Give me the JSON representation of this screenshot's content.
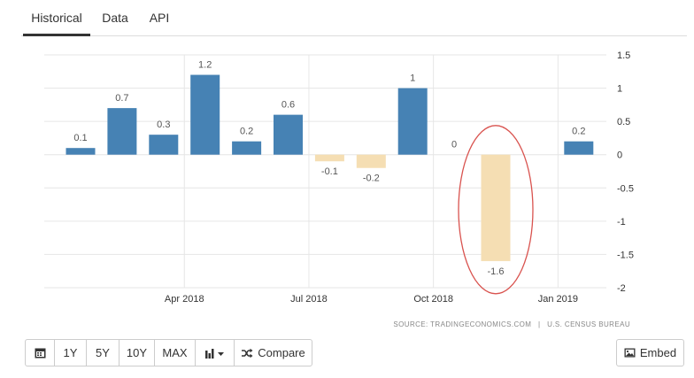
{
  "tabs": [
    {
      "label": "Historical",
      "active": true
    },
    {
      "label": "Data",
      "active": false
    },
    {
      "label": "API",
      "active": false
    }
  ],
  "chart_data": {
    "type": "bar",
    "title": "",
    "xlabel": "",
    "ylabel": "",
    "ylim": [
      -2,
      1.5
    ],
    "yticks": [
      "1.5",
      "1",
      "0.5",
      "0",
      "-0.5",
      "-1",
      "-1.5",
      "-2"
    ],
    "y_axis_position": "right",
    "grid": true,
    "x_tick_labels": [
      {
        "label": "Apr 2018",
        "at": 2.5
      },
      {
        "label": "Jul 2018",
        "at": 5.5
      },
      {
        "label": "Oct 2018",
        "at": 8.5
      },
      {
        "label": "Jan 2019",
        "at": 11.5
      }
    ],
    "bars": [
      {
        "value": 0.1,
        "label": "0.1"
      },
      {
        "value": 0.7,
        "label": "0.7"
      },
      {
        "value": 0.3,
        "label": "0.3"
      },
      {
        "value": 1.2,
        "label": "1.2"
      },
      {
        "value": 0.2,
        "label": "0.2"
      },
      {
        "value": 0.6,
        "label": "0.6"
      },
      {
        "value": -0.1,
        "label": "-0.1"
      },
      {
        "value": -0.2,
        "label": "-0.2"
      },
      {
        "value": 1,
        "label": "1"
      },
      {
        "value": 0,
        "label": "0"
      },
      {
        "value": -1.6,
        "label": "-1.6"
      },
      {
        "value": null,
        "label": ""
      },
      {
        "value": 0.2,
        "label": "0.2"
      }
    ],
    "colors": {
      "positive": "#4682b4",
      "negative": "#f5deb3",
      "highlight_circle": "#d9534f",
      "grid": "#e6e6e6"
    },
    "annotations": [
      {
        "type": "circle",
        "bar_index": 10
      }
    ]
  },
  "source": {
    "left": "SOURCE: TRADINGECONOMICS.COM",
    "separator": "|",
    "right": "U.S. CENSUS BUREAU"
  },
  "toolbar": {
    "calendar_icon": "calendar-icon",
    "range_buttons": [
      "1Y",
      "5Y",
      "10Y",
      "MAX"
    ],
    "chart_type_icon": "bar-chart-icon",
    "compare_icon": "shuffle-icon",
    "compare_label": "Compare",
    "embed_icon": "image-icon",
    "embed_label": "Embed"
  }
}
